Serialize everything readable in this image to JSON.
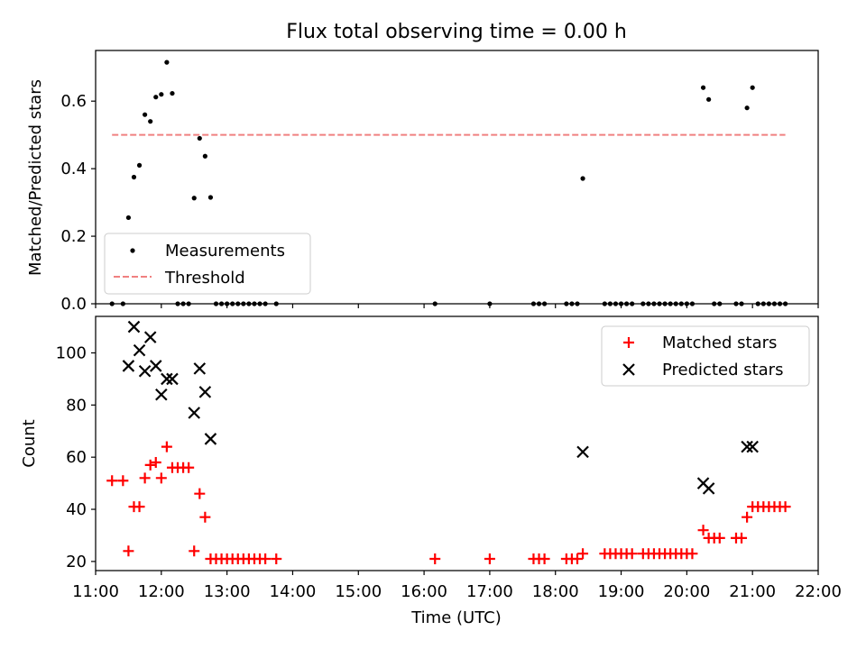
{
  "figure": {
    "title": "Flux total observing time = 0.00 h"
  },
  "chart_data": [
    {
      "type": "scatter",
      "name": "ratio-panel",
      "title": "Flux total observing time = 0.00 h",
      "xlabel": "",
      "ylabel": "Matched/Predicted stars",
      "x_unit": "hours UTC",
      "xlim": [
        "11:00",
        "22:00"
      ],
      "ylim": [
        0,
        0.75
      ],
      "yticks": [
        0.0,
        0.2,
        0.4,
        0.6
      ],
      "ytick_labels": [
        "0.0",
        "0.2",
        "0.4",
        "0.6"
      ],
      "legend": {
        "position": "lower-left",
        "entries": [
          "Measurements",
          "Threshold"
        ]
      },
      "threshold": {
        "name": "Threshold",
        "y": 0.5,
        "x_start": "11:15",
        "x_end": "21:30",
        "color": "#f08080",
        "style": "dashed"
      },
      "series": [
        {
          "name": "Measurements",
          "color": "#000000",
          "marker": "dot",
          "points": [
            [
              "11:15",
              0.0
            ],
            [
              "11:25",
              0.0
            ],
            [
              "11:30",
              0.255
            ],
            [
              "11:35",
              0.375
            ],
            [
              "11:40",
              0.41
            ],
            [
              "11:45",
              0.56
            ],
            [
              "11:50",
              0.54
            ],
            [
              "11:55",
              0.612
            ],
            [
              "12:00",
              0.62
            ],
            [
              "12:05",
              0.715
            ],
            [
              "12:10",
              0.623
            ],
            [
              "12:15",
              0.0
            ],
            [
              "12:20",
              0.0
            ],
            [
              "12:25",
              0.0
            ],
            [
              "12:30",
              0.313
            ],
            [
              "12:35",
              0.49
            ],
            [
              "12:40",
              0.437
            ],
            [
              "12:45",
              0.315
            ],
            [
              "12:50",
              0.0
            ],
            [
              "12:55",
              0.0
            ],
            [
              "13:00",
              0.0
            ],
            [
              "13:05",
              0.0
            ],
            [
              "13:10",
              0.0
            ],
            [
              "13:15",
              0.0
            ],
            [
              "13:20",
              0.0
            ],
            [
              "13:25",
              0.0
            ],
            [
              "13:30",
              0.0
            ],
            [
              "13:35",
              0.0
            ],
            [
              "13:45",
              0.0
            ],
            [
              "16:10",
              0.0
            ],
            [
              "17:00",
              0.0
            ],
            [
              "17:40",
              0.0
            ],
            [
              "17:45",
              0.0
            ],
            [
              "17:50",
              0.0
            ],
            [
              "18:10",
              0.0
            ],
            [
              "18:15",
              0.0
            ],
            [
              "18:20",
              0.0
            ],
            [
              "18:25",
              0.371
            ],
            [
              "18:45",
              0.0
            ],
            [
              "18:50",
              0.0
            ],
            [
              "18:55",
              0.0
            ],
            [
              "19:00",
              0.0
            ],
            [
              "19:05",
              0.0
            ],
            [
              "19:10",
              0.0
            ],
            [
              "19:20",
              0.0
            ],
            [
              "19:25",
              0.0
            ],
            [
              "19:30",
              0.0
            ],
            [
              "19:35",
              0.0
            ],
            [
              "19:40",
              0.0
            ],
            [
              "19:45",
              0.0
            ],
            [
              "19:50",
              0.0
            ],
            [
              "19:55",
              0.0
            ],
            [
              "20:00",
              0.0
            ],
            [
              "20:05",
              0.0
            ],
            [
              "20:15",
              0.64
            ],
            [
              "20:20",
              0.605
            ],
            [
              "20:25",
              0.0
            ],
            [
              "20:30",
              0.0
            ],
            [
              "20:45",
              0.0
            ],
            [
              "20:50",
              0.0
            ],
            [
              "20:55",
              0.58
            ],
            [
              "21:00",
              0.64
            ],
            [
              "21:05",
              0.0
            ],
            [
              "21:10",
              0.0
            ],
            [
              "21:15",
              0.0
            ],
            [
              "21:20",
              0.0
            ],
            [
              "21:25",
              0.0
            ],
            [
              "21:30",
              0.0
            ]
          ]
        }
      ]
    },
    {
      "type": "scatter",
      "name": "count-panel",
      "xlabel": "Time (UTC)",
      "ylabel": "Count",
      "x_unit": "hours UTC",
      "xlim": [
        "11:00",
        "22:00"
      ],
      "ylim": [
        16.5,
        114
      ],
      "xticks": [
        "11:00",
        "12:00",
        "13:00",
        "14:00",
        "15:00",
        "16:00",
        "17:00",
        "18:00",
        "19:00",
        "20:00",
        "21:00",
        "22:00"
      ],
      "yticks": [
        20,
        40,
        60,
        80,
        100
      ],
      "ytick_labels": [
        "20",
        "40",
        "60",
        "80",
        "100"
      ],
      "legend": {
        "position": "upper-right",
        "entries": [
          "Matched stars",
          "Predicted stars"
        ]
      },
      "series": [
        {
          "name": "Matched stars",
          "color": "#ff0000",
          "marker": "plus",
          "points": [
            [
              "11:15",
              51
            ],
            [
              "11:25",
              51
            ],
            [
              "11:30",
              24
            ],
            [
              "11:35",
              41
            ],
            [
              "11:40",
              41
            ],
            [
              "11:45",
              52
            ],
            [
              "11:50",
              57
            ],
            [
              "11:55",
              58
            ],
            [
              "12:00",
              52
            ],
            [
              "12:05",
              64
            ],
            [
              "12:10",
              56
            ],
            [
              "12:15",
              56
            ],
            [
              "12:20",
              56
            ],
            [
              "12:25",
              56
            ],
            [
              "12:30",
              24
            ],
            [
              "12:35",
              46
            ],
            [
              "12:40",
              37
            ],
            [
              "12:45",
              21
            ],
            [
              "12:50",
              21
            ],
            [
              "12:55",
              21
            ],
            [
              "13:00",
              21
            ],
            [
              "13:05",
              21
            ],
            [
              "13:10",
              21
            ],
            [
              "13:15",
              21
            ],
            [
              "13:20",
              21
            ],
            [
              "13:25",
              21
            ],
            [
              "13:30",
              21
            ],
            [
              "13:35",
              21
            ],
            [
              "13:45",
              21
            ],
            [
              "16:10",
              21
            ],
            [
              "17:00",
              21
            ],
            [
              "17:40",
              21
            ],
            [
              "17:45",
              21
            ],
            [
              "17:50",
              21
            ],
            [
              "18:10",
              21
            ],
            [
              "18:15",
              21
            ],
            [
              "18:20",
              21
            ],
            [
              "18:25",
              23
            ],
            [
              "18:45",
              23
            ],
            [
              "18:50",
              23
            ],
            [
              "18:55",
              23
            ],
            [
              "19:00",
              23
            ],
            [
              "19:05",
              23
            ],
            [
              "19:10",
              23
            ],
            [
              "19:20",
              23
            ],
            [
              "19:25",
              23
            ],
            [
              "19:30",
              23
            ],
            [
              "19:35",
              23
            ],
            [
              "19:40",
              23
            ],
            [
              "19:45",
              23
            ],
            [
              "19:50",
              23
            ],
            [
              "19:55",
              23
            ],
            [
              "20:00",
              23
            ],
            [
              "20:05",
              23
            ],
            [
              "20:15",
              32
            ],
            [
              "20:20",
              29
            ],
            [
              "20:25",
              29
            ],
            [
              "20:30",
              29
            ],
            [
              "20:45",
              29
            ],
            [
              "20:50",
              29
            ],
            [
              "20:55",
              37
            ],
            [
              "21:00",
              41
            ],
            [
              "21:05",
              41
            ],
            [
              "21:10",
              41
            ],
            [
              "21:15",
              41
            ],
            [
              "21:20",
              41
            ],
            [
              "21:25",
              41
            ],
            [
              "21:30",
              41
            ]
          ]
        },
        {
          "name": "Predicted stars",
          "color": "#000000",
          "marker": "x",
          "points": [
            [
              "11:30",
              95
            ],
            [
              "11:35",
              110
            ],
            [
              "11:40",
              101
            ],
            [
              "11:45",
              93
            ],
            [
              "11:50",
              106
            ],
            [
              "11:55",
              95
            ],
            [
              "12:00",
              84
            ],
            [
              "12:05",
              90
            ],
            [
              "12:10",
              90
            ],
            [
              "12:30",
              77
            ],
            [
              "12:35",
              94
            ],
            [
              "12:40",
              85
            ],
            [
              "12:45",
              67
            ],
            [
              "18:25",
              62
            ],
            [
              "20:15",
              50
            ],
            [
              "20:20",
              48
            ],
            [
              "20:55",
              64
            ],
            [
              "21:00",
              64
            ]
          ]
        }
      ]
    }
  ]
}
